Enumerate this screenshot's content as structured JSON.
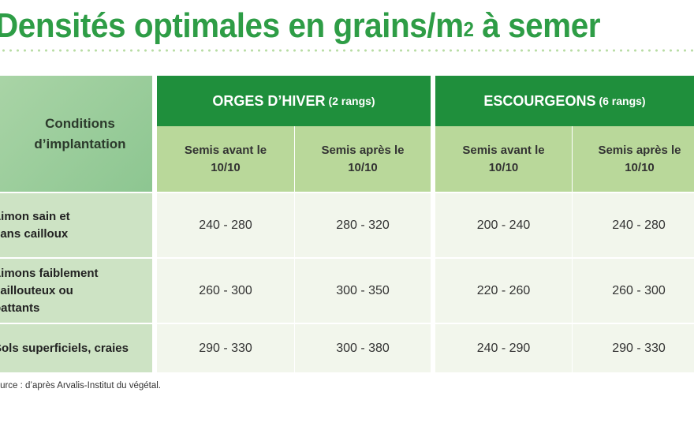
{
  "title": {
    "main": "Densités optimales en grains/m",
    "sup": "2",
    "tail": " à semer"
  },
  "table": {
    "corner_header": "Conditions d’implantation",
    "groups": [
      {
        "name": "ORGES D’HIVER",
        "detail": "(2 rangs)"
      },
      {
        "name": "ESCOURGEONS",
        "detail": "(6 rangs)"
      }
    ],
    "subheaders": [
      "Semis avant le 10/10",
      "Semis après le 10/10",
      "Semis avant le 10/10",
      "Semis après le 10/10"
    ],
    "rows": [
      {
        "label": "Limon sain et sans cailloux",
        "values": [
          "240 - 280",
          "280 - 320",
          "200 - 240",
          "240 - 280"
        ]
      },
      {
        "label": "Limons faiblement caillouteux ou battants",
        "values": [
          "260 - 300",
          "300 - 350",
          "220 - 260",
          "260 - 300"
        ]
      },
      {
        "label": "Sols superficiels, craies",
        "values": [
          "290 - 330",
          "300 - 380",
          "240 - 290",
          "290 - 330"
        ]
      }
    ]
  },
  "source": "Source : d’après Arvalis-Institut du végétal.",
  "colors": {
    "title_green": "#2e9d46",
    "group_header_green": "#1f8f3c",
    "subheader_green": "#b9d89a",
    "row_label_green": "#cde3c4",
    "value_bg": "#f2f6ec"
  }
}
